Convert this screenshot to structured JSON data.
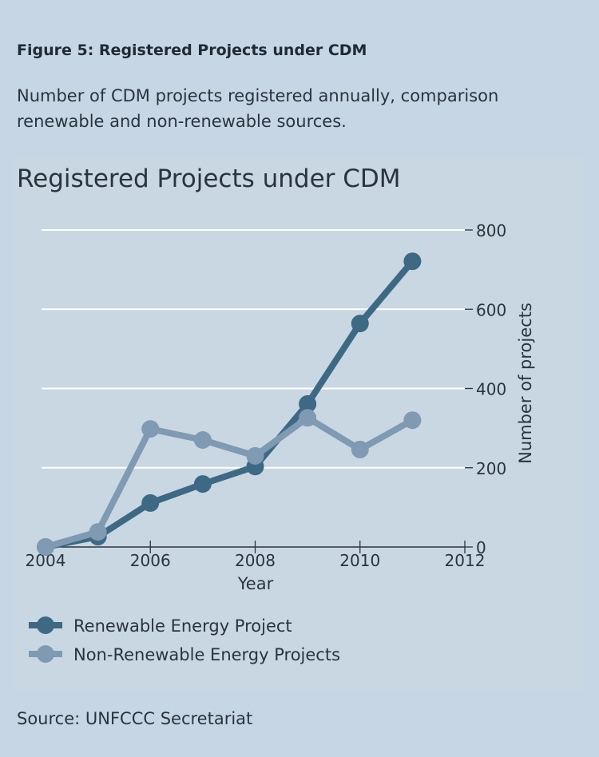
{
  "figure_label": "Figure 5: Registered Projects under CDM",
  "subtitle": "Number of CDM projects registered annually, comparison renewable and non-renewable sources.",
  "source": "Source: UNFCCC Secretariat",
  "chart_data": {
    "type": "line",
    "title": "Registered Projects under CDM",
    "xlabel": "Year",
    "ylabel": "Number of projects",
    "xlim": [
      2004,
      2012
    ],
    "ylim": [
      0,
      800
    ],
    "x_ticks": [
      "2004",
      "2006",
      "2008",
      "2010",
      "2012"
    ],
    "y_ticks": [
      "0",
      "200",
      "400",
      "600",
      "800"
    ],
    "y_axis_side": "right",
    "grid": true,
    "legend": "bottom-left",
    "x": [
      2004,
      2005,
      2006,
      2007,
      2008,
      2009,
      2010,
      2011
    ],
    "series": [
      {
        "name": "Renewable Energy Project",
        "color": "#3e6985",
        "values": [
          0,
          26,
          111,
          159,
          203,
          361,
          564,
          721
        ]
      },
      {
        "name": "Non-Renewable Energy Projects",
        "color": "#7f9ab2",
        "values": [
          0,
          38,
          298,
          270,
          230,
          326,
          246,
          320
        ]
      }
    ]
  }
}
